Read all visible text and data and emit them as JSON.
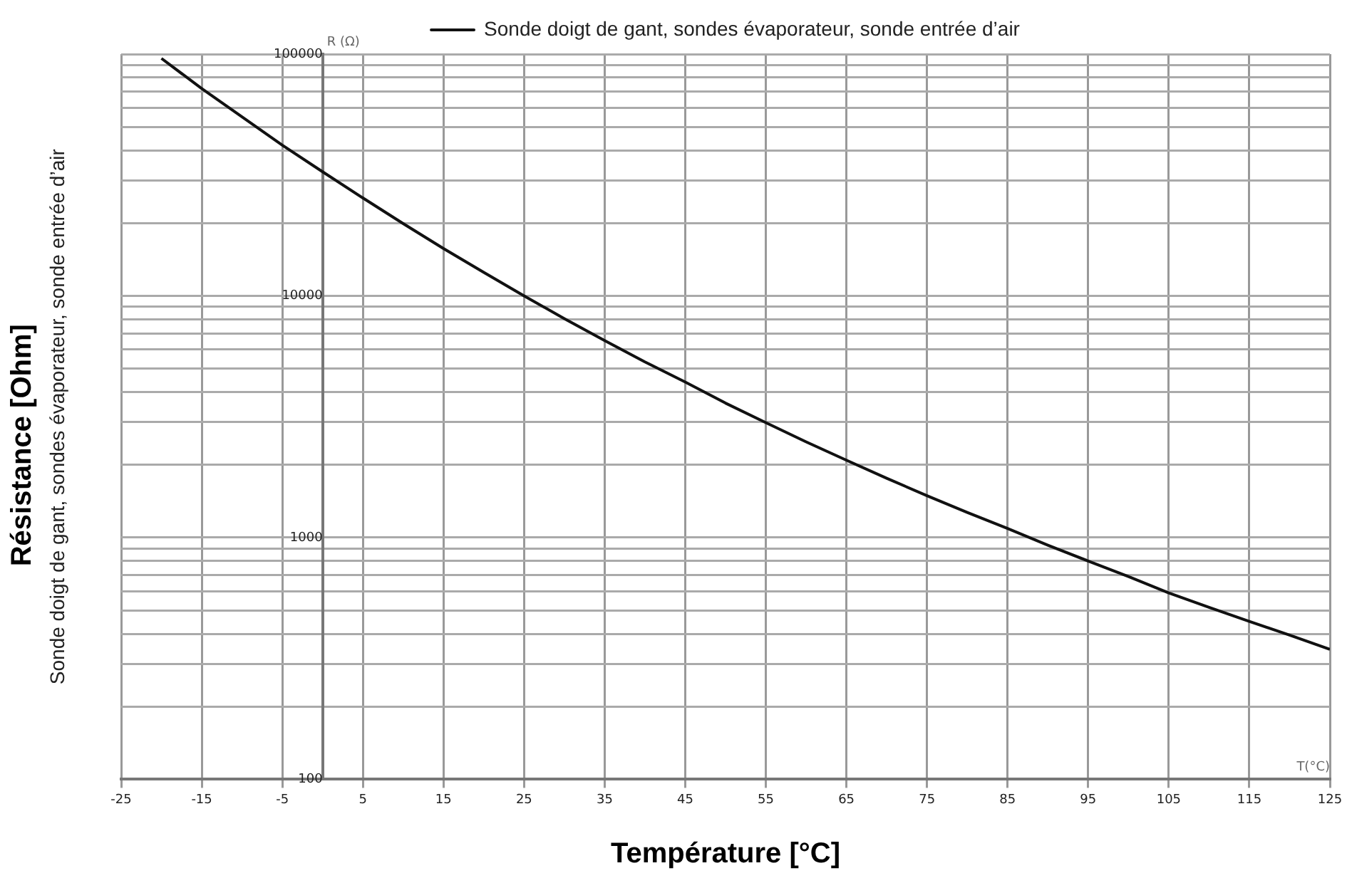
{
  "chart_data": {
    "type": "line",
    "xlabel": "Température [°C]",
    "ylabel": "Résistance [Ohm]",
    "annotations": [
      "Sonde doigt de gant, sondes évaporateur, sonde entrée d’air",
      "R (Ω)",
      "T(°C)"
    ],
    "x": [
      -20,
      -15,
      -10,
      -5,
      0,
      5,
      10,
      15,
      20,
      25,
      30,
      35,
      40,
      45,
      50,
      55,
      60,
      65,
      70,
      75,
      80,
      85,
      90,
      95,
      100,
      105,
      110,
      115,
      120,
      125
    ],
    "series": [
      {
        "name": "Sonde doigt de gant, sondes évaporateur, sonde entrée d’air",
        "color": "#111111",
        "values": [
          96000,
          72000,
          55000,
          42000,
          32600,
          25400,
          19900,
          15700,
          12500,
          10000,
          8050,
          6530,
          5330,
          4400,
          3600,
          2990,
          2490,
          2090,
          1760,
          1490,
          1270,
          1090,
          930,
          800,
          690,
          590,
          515,
          450,
          395,
          345
        ]
      }
    ],
    "xlim": [
      -25,
      125
    ],
    "xticks": [
      -25,
      -15,
      -5,
      5,
      15,
      25,
      35,
      45,
      55,
      65,
      75,
      85,
      95,
      105,
      115,
      125
    ],
    "ylim": [
      100,
      100000
    ],
    "yticks": [
      100,
      {
        "value": 200,
        "label": null
      },
      {
        "value": 300,
        "label": null
      },
      {
        "value": 400,
        "label": null
      },
      {
        "value": 500,
        "label": null
      },
      {
        "value": 600,
        "label": null
      },
      {
        "value": 700,
        "label": null
      },
      {
        "value": 800,
        "label": null
      },
      {
        "value": 900,
        "label": null
      },
      1000,
      {
        "value": 2000,
        "label": null
      },
      {
        "value": 3000,
        "label": null
      },
      {
        "value": 4000,
        "label": null
      },
      {
        "value": 5000,
        "label": null
      },
      {
        "value": 6000,
        "label": null
      },
      {
        "value": 7000,
        "label": null
      },
      {
        "value": 8000,
        "label": null
      },
      {
        "value": 9000,
        "label": null
      },
      10000,
      {
        "value": 20000,
        "label": null
      },
      {
        "value": 30000,
        "label": null
      },
      {
        "value": 40000,
        "label": null
      },
      {
        "value": 50000,
        "label": null
      },
      {
        "value": 60000,
        "label": null
      },
      {
        "value": 70000,
        "label": null
      },
      {
        "value": 80000,
        "label": null
      },
      {
        "value": 90000,
        "label": null
      },
      100000
    ],
    "log": "y",
    "grid": true,
    "legend": "top",
    "marker": "none",
    "line_style": "solid"
  }
}
